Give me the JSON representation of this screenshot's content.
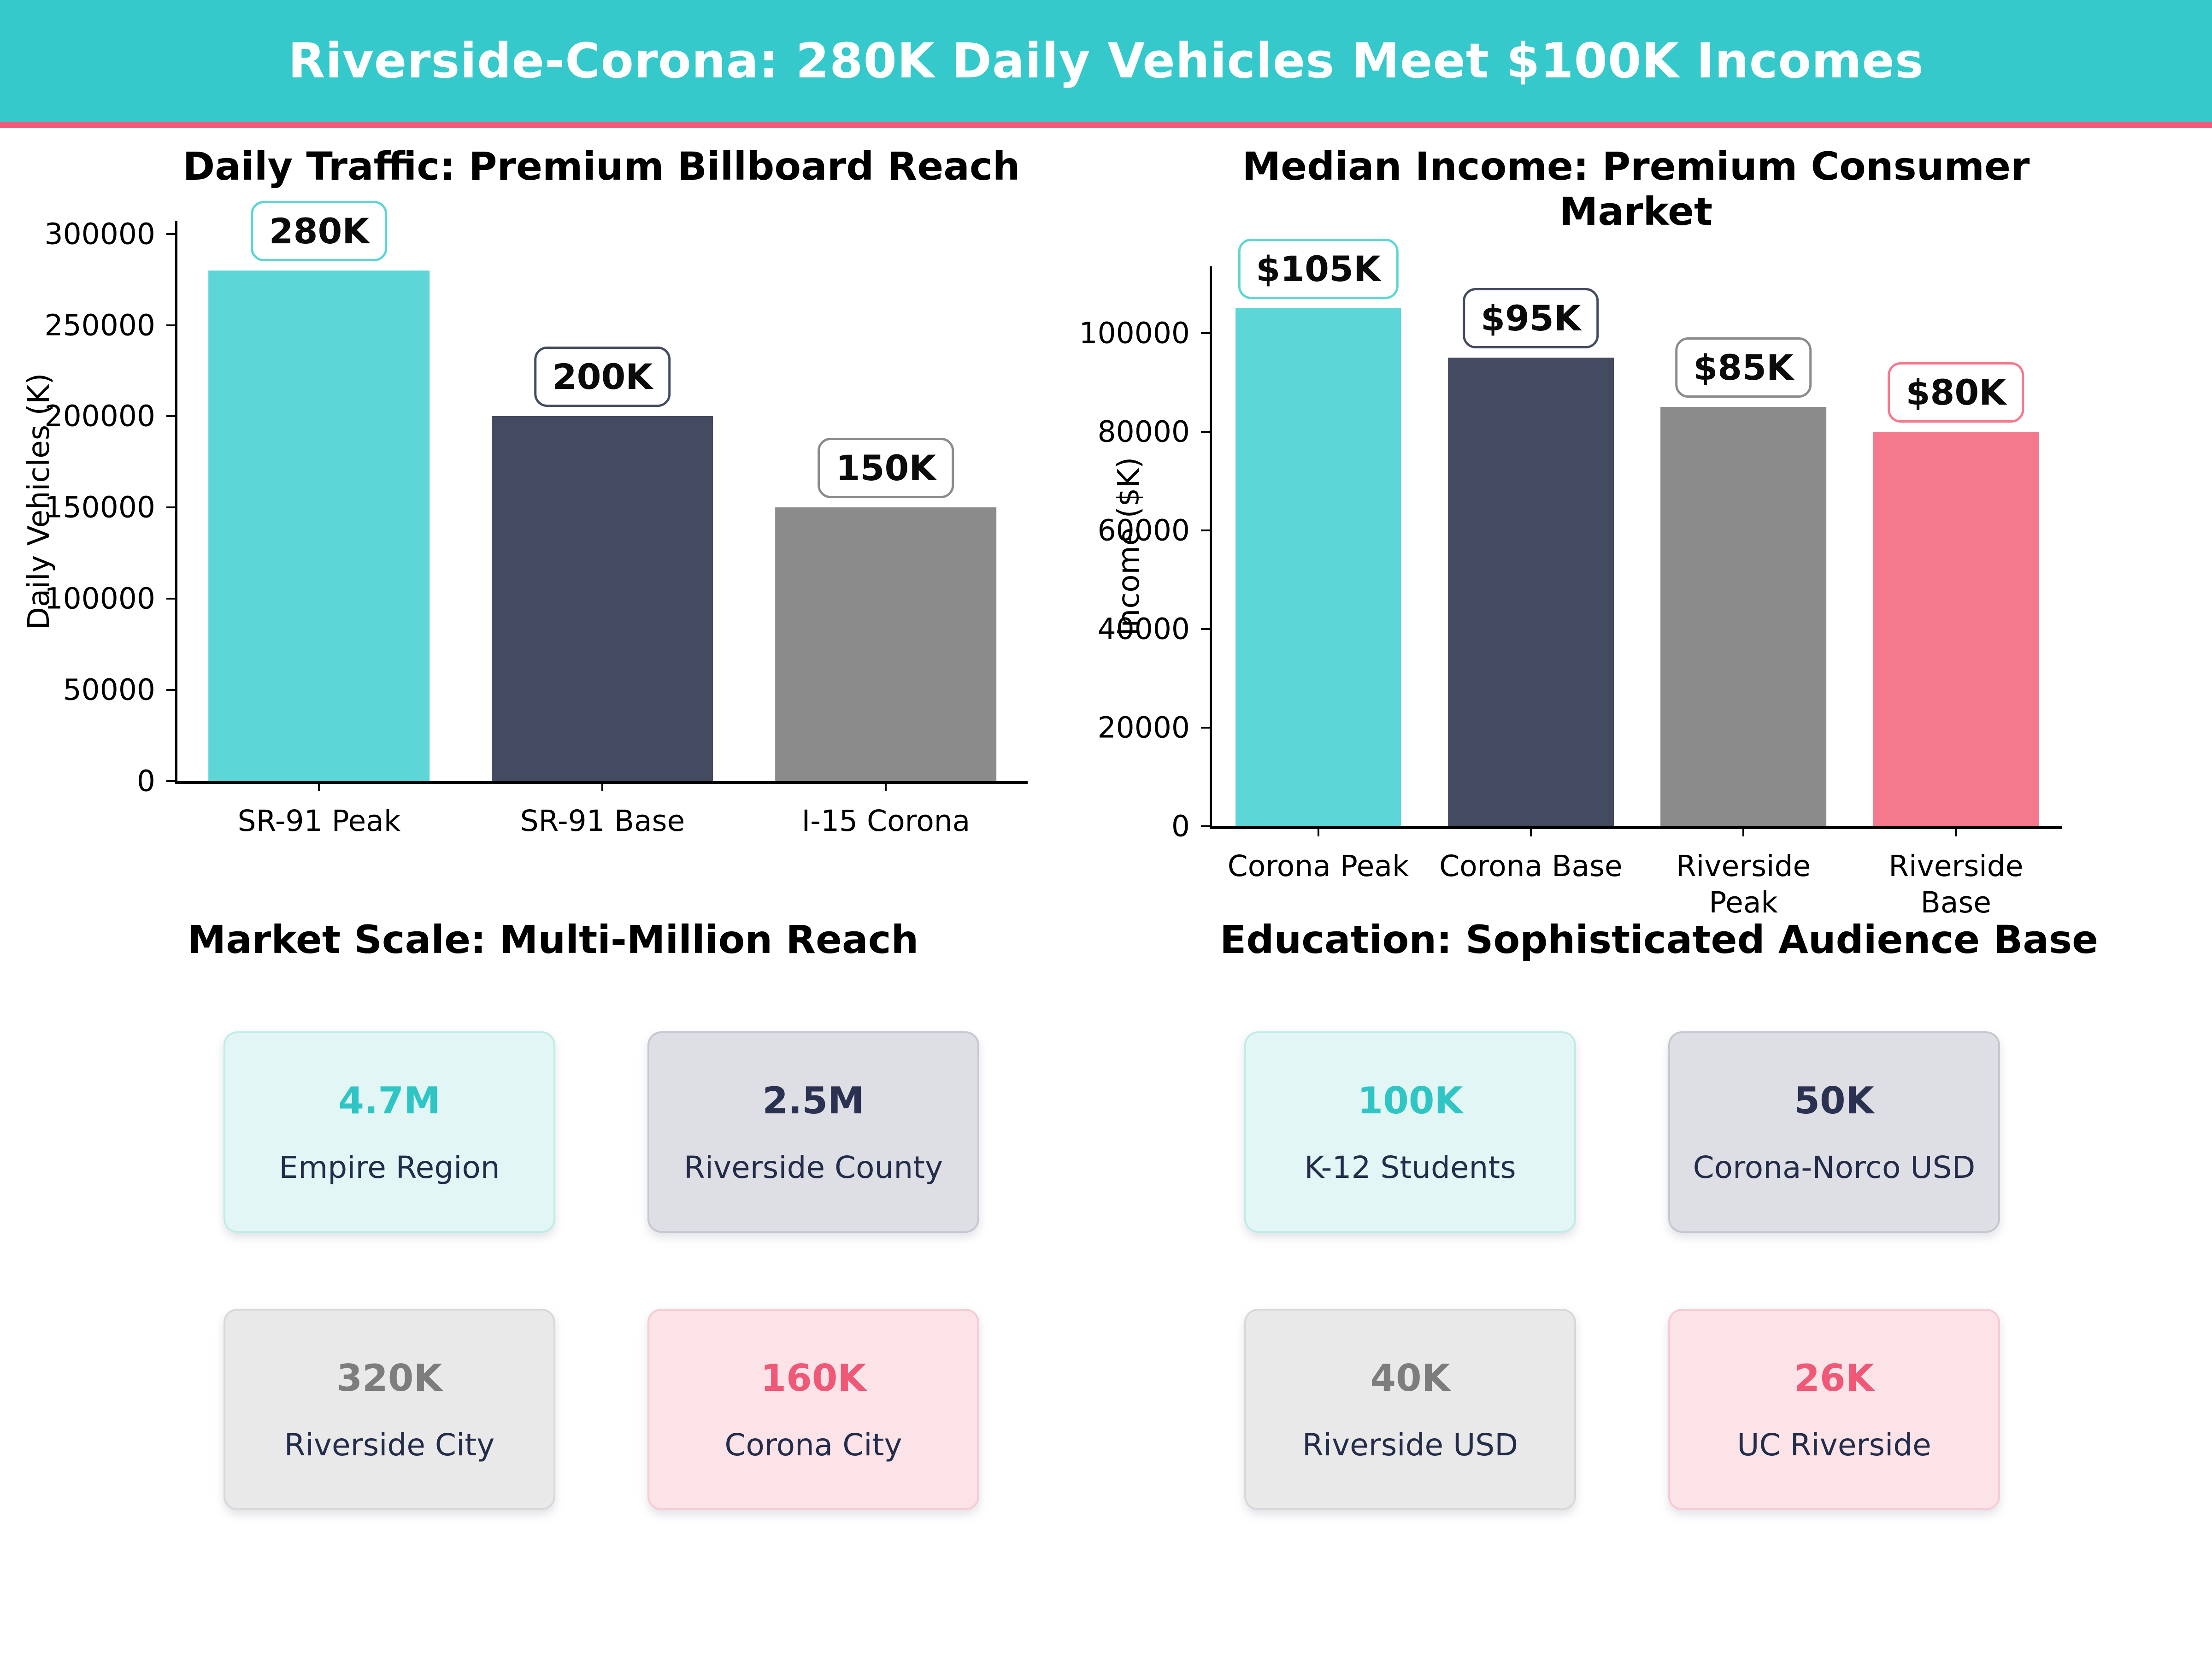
{
  "header": {
    "title": "Riverside-Corona: 280K Daily Vehicles Meet $100K Incomes"
  },
  "colors": {
    "header_bg": "#36C9CC",
    "header_accent": "#F05A78",
    "header_text": "#FFFFFF",
    "chart_text": "#000000",
    "bar_teal": "#5CD6D6",
    "bar_navy": "#444B60",
    "bar_gray": "#8B8B8B",
    "bar_pink": "#F5798C",
    "card_teal_bg": "#E2F7F5",
    "card_teal_border": "#C0ECE8",
    "card_teal_value": "#2FC5C5",
    "card_navy_bg": "#DEDFE5",
    "card_navy_border": "#C5C7D1",
    "card_navy_value": "#2B3150",
    "card_gray_bg": "#E9E9E9",
    "card_gray_border": "#D8D8D8",
    "card_gray_value": "#7D7D7D",
    "card_pink_bg": "#FBE3E8",
    "card_pink_border": "#F7CAD4",
    "card_pink_value": "#EF5876",
    "card_label": "#232C4A"
  },
  "chart_data": [
    {
      "type": "bar",
      "title": "Daily Traffic: Premium Billboard Reach",
      "xlabel": "",
      "ylabel": "Daily Vehicles (K)",
      "categories": [
        "SR-91 Peak",
        "SR-91 Base",
        "I-15 Corona"
      ],
      "values": [
        280000,
        200000,
        150000
      ],
      "bar_labels": [
        "280K",
        "200K",
        "150K"
      ],
      "bar_colors": [
        "#5CD6D6",
        "#444B60",
        "#8B8B8B"
      ],
      "yticks": [
        0,
        50000,
        100000,
        150000,
        200000,
        250000,
        300000
      ],
      "ylim": [
        0,
        307000
      ],
      "grid": false,
      "legend": null
    },
    {
      "type": "bar",
      "title": "Median Income: Premium Consumer Market",
      "xlabel": "",
      "ylabel": "Income ($K)",
      "categories": [
        "Corona Peak",
        "Corona Base",
        "Riverside Peak",
        "Riverside Base"
      ],
      "values": [
        105000,
        95000,
        85000,
        80000
      ],
      "bar_labels": [
        "$105K",
        "$95K",
        "$85K",
        "$80K"
      ],
      "bar_colors": [
        "#5CD6D6",
        "#444B60",
        "#8B8B8B",
        "#F5798C"
      ],
      "yticks": [
        0,
        20000,
        40000,
        60000,
        80000,
        100000
      ],
      "ylim": [
        0,
        113500
      ],
      "grid": false,
      "legend": null
    }
  ],
  "sections": [
    {
      "title": "Market Scale: Multi-Million Reach",
      "cards": [
        {
          "value": "4.7M",
          "label": "Empire Region",
          "variant": "teal"
        },
        {
          "value": "2.5M",
          "label": "Riverside County",
          "variant": "navy"
        },
        {
          "value": "320K",
          "label": "Riverside City",
          "variant": "gray"
        },
        {
          "value": "160K",
          "label": "Corona City",
          "variant": "pink"
        }
      ]
    },
    {
      "title": "Education: Sophisticated Audience Base",
      "cards": [
        {
          "value": "100K",
          "label": "K-12 Students",
          "variant": "teal"
        },
        {
          "value": "50K",
          "label": "Corona-Norco USD",
          "variant": "navy"
        },
        {
          "value": "40K",
          "label": "Riverside USD",
          "variant": "gray"
        },
        {
          "value": "26K",
          "label": "UC Riverside",
          "variant": "pink"
        }
      ]
    }
  ]
}
